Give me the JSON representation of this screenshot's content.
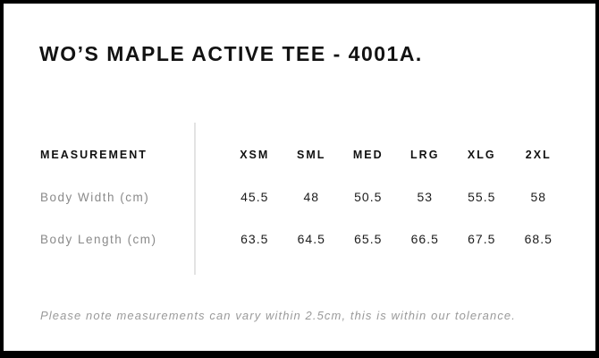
{
  "page": {
    "title": "WO’S MAPLE ACTIVE TEE - 4001A.",
    "footnote": "Please note measurements can vary within 2.5cm, this is within our tolerance."
  },
  "size_chart": {
    "header_label": "MEASUREMENT",
    "sizes": [
      "XSM",
      "SML",
      "MED",
      "LRG",
      "XLG",
      "2XL"
    ],
    "rows": [
      {
        "label": "Body Width (cm)",
        "values": [
          "45.5",
          "48",
          "50.5",
          "53",
          "55.5",
          "58"
        ]
      },
      {
        "label": "Body Length (cm)",
        "values": [
          "63.5",
          "64.5",
          "65.5",
          "66.5",
          "67.5",
          "68.5"
        ]
      }
    ]
  },
  "colors": {
    "frame": "#000000",
    "sheet_background": "#ffffff",
    "heading_text": "#121212",
    "value_text": "#1c1c1c",
    "muted_text": "#8a8a8a",
    "footnote_text": "#9a9a9a",
    "divider": "#e3e3e3"
  }
}
